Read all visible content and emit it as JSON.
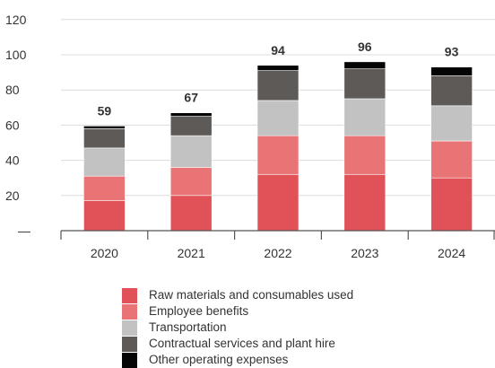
{
  "chart_data": {
    "type": "bar",
    "stacked": true,
    "categories": [
      "2020",
      "2021",
      "2022",
      "2023",
      "2024"
    ],
    "series": [
      {
        "name": "Raw materials and consumables used",
        "color": "#e05257",
        "values": [
          17,
          20,
          32,
          32,
          30
        ]
      },
      {
        "name": "Employee benefits",
        "color": "#e87476",
        "values": [
          14,
          16,
          22,
          22,
          21
        ]
      },
      {
        "name": "Transportation",
        "color": "#c2c2c2",
        "values": [
          16,
          18,
          20,
          21,
          20
        ]
      },
      {
        "name": "Contractual services and plant hire",
        "color": "#5d5a58",
        "values": [
          11,
          11,
          17,
          17,
          17
        ]
      },
      {
        "name": "Other operating expenses",
        "color": "#050505",
        "values": [
          1.5,
          2,
          3,
          4,
          5
        ]
      }
    ],
    "totals": [
      "59",
      "67",
      "94",
      "96",
      "93"
    ],
    "y_ticks": [
      "20",
      "40",
      "60",
      "80",
      "100",
      "120"
    ],
    "y_zero_label": "—",
    "ylim": [
      0,
      120
    ],
    "grid": true,
    "legend_position": "bottom",
    "title": "",
    "xlabel": "",
    "ylabel": ""
  }
}
